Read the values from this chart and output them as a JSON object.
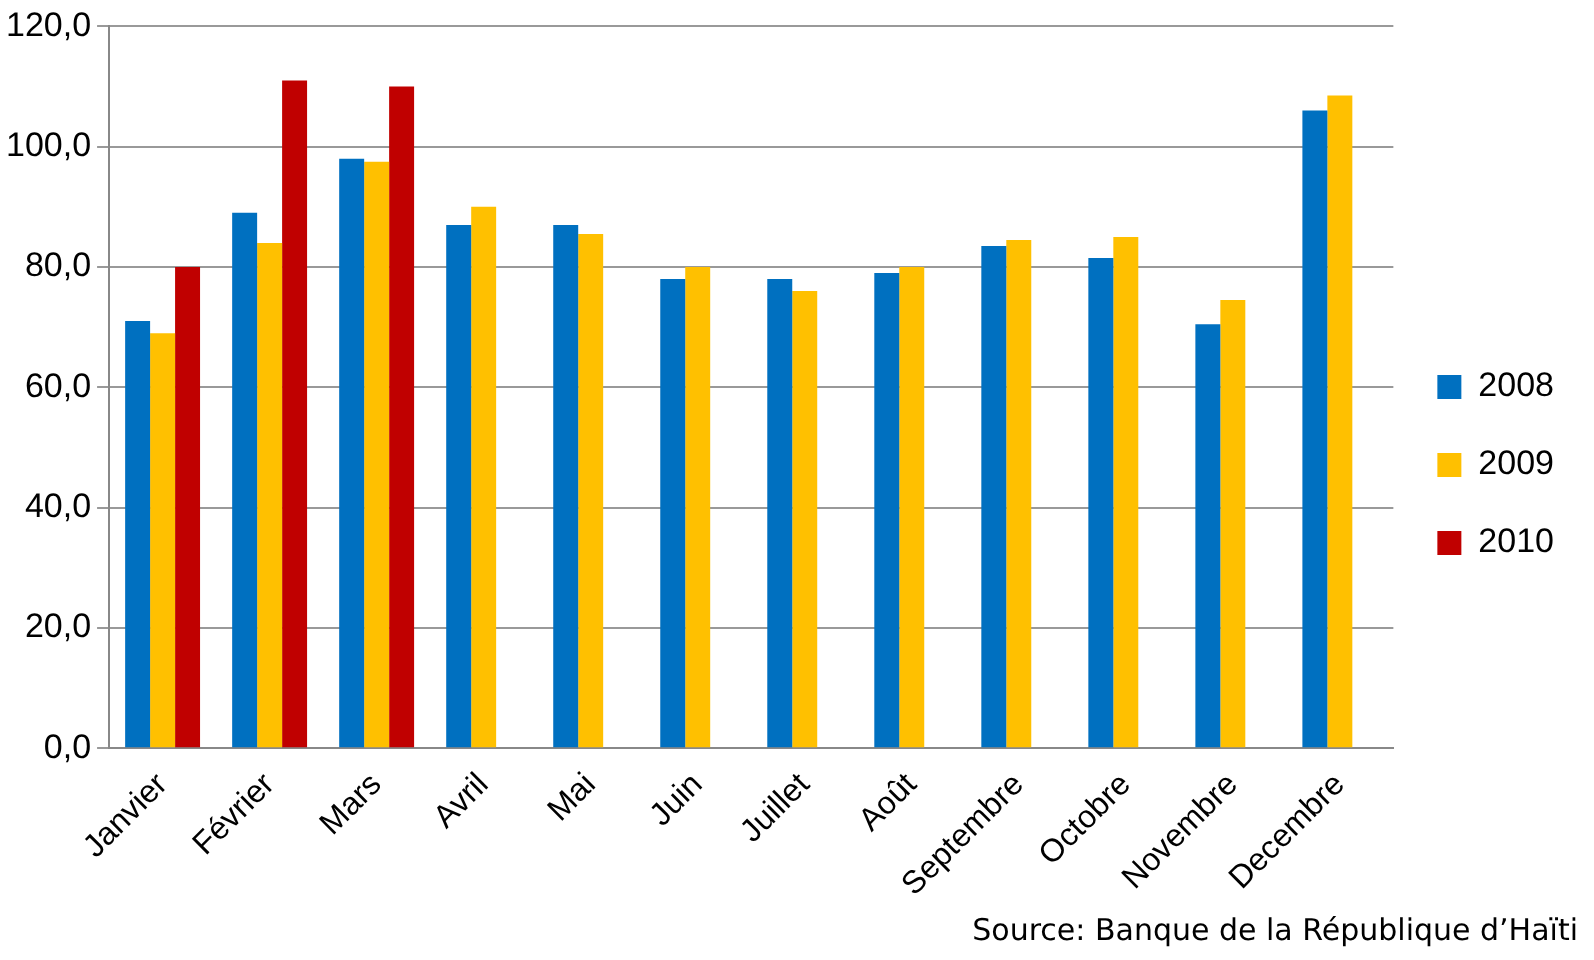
{
  "chart_data": {
    "type": "bar",
    "categories": [
      "Janvier",
      "Février",
      "Mars",
      "Avril",
      "Mai",
      "Juin",
      "Juillet",
      "Août",
      "Septembre",
      "Octobre",
      "Novembre",
      "Decembre"
    ],
    "series": [
      {
        "name": "2008",
        "color": "#0070c0",
        "values": [
          71,
          89,
          98,
          87,
          87,
          78,
          78,
          79,
          83.5,
          81.5,
          70.5,
          106
        ]
      },
      {
        "name": "2009",
        "color": "#ffc000",
        "values": [
          69,
          84,
          97.5,
          90,
          85.5,
          80,
          76,
          80,
          84.5,
          85,
          74.5,
          108.5
        ]
      },
      {
        "name": "2010",
        "color": "#c00000",
        "values": [
          80,
          111,
          110,
          null,
          null,
          null,
          null,
          null,
          null,
          null,
          null,
          null
        ]
      }
    ],
    "ylim": [
      0,
      120
    ],
    "yticks": [
      {
        "value": 0,
        "label": "0,0"
      },
      {
        "value": 20,
        "label": "20,0"
      },
      {
        "value": 40,
        "label": "40,0"
      },
      {
        "value": 60,
        "label": "60,0"
      },
      {
        "value": 80,
        "label": "80,0"
      },
      {
        "value": 100,
        "label": "100,0"
      },
      {
        "value": 120,
        "label": "120,0"
      }
    ],
    "grid": "y",
    "legend": "right",
    "annotations": [
      "Source: Banque de la République d’Haïti"
    ]
  }
}
